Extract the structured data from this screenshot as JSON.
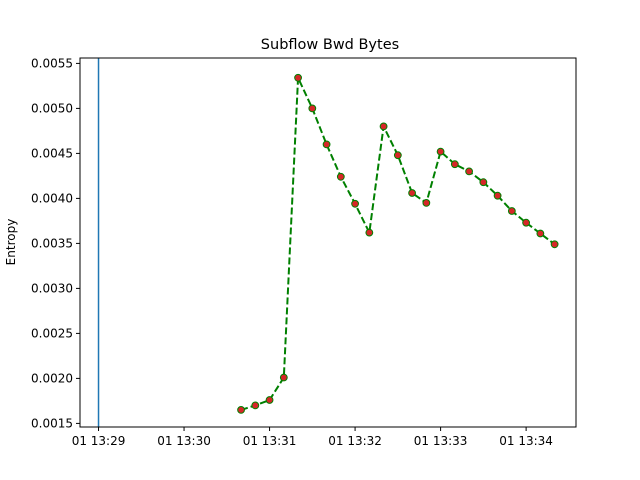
{
  "chart_data": {
    "type": "line",
    "title": "Subflow Bwd Bytes",
    "xlabel": "",
    "ylabel": "Entropy",
    "x_ticks": [
      "01 13:29",
      "01 13:30",
      "01 13:31",
      "01 13:32",
      "01 13:33",
      "01 13:34"
    ],
    "x_tick_values": [
      "13:29:00",
      "13:30:00",
      "13:31:00",
      "13:32:00",
      "13:33:00",
      "13:34:00"
    ],
    "xlim": [
      "13:28:47",
      "13:34:35"
    ],
    "y_ticks": [
      "0.0015",
      "0.0020",
      "0.0025",
      "0.0030",
      "0.0035",
      "0.0040",
      "0.0045",
      "0.0050",
      "0.0055"
    ],
    "ylim": [
      0.00146,
      0.00556
    ],
    "grid": false,
    "vertical_line": {
      "x": "13:29:00",
      "color": "#1f77b4"
    },
    "series": [
      {
        "line_color": "#008000",
        "line_style": "dashed",
        "marker_face": "#d62728",
        "marker_edge": "#008000",
        "x": [
          "13:30:40",
          "13:30:50",
          "13:31:00",
          "13:31:10",
          "13:31:20",
          "13:31:30",
          "13:31:40",
          "13:31:50",
          "13:32:00",
          "13:32:10",
          "13:32:20",
          "13:32:30",
          "13:32:40",
          "13:32:50",
          "13:33:00",
          "13:33:10",
          "13:33:20",
          "13:33:30",
          "13:33:40",
          "13:33:50",
          "13:34:00",
          "13:34:10",
          "13:34:20"
        ],
        "y": [
          0.00165,
          0.0017,
          0.00176,
          0.00201,
          0.00534,
          0.005,
          0.0046,
          0.00424,
          0.00394,
          0.00362,
          0.0048,
          0.00448,
          0.00406,
          0.00395,
          0.00452,
          0.00438,
          0.0043,
          0.00418,
          0.00403,
          0.00386,
          0.00373,
          0.00361,
          0.00349
        ]
      }
    ]
  }
}
